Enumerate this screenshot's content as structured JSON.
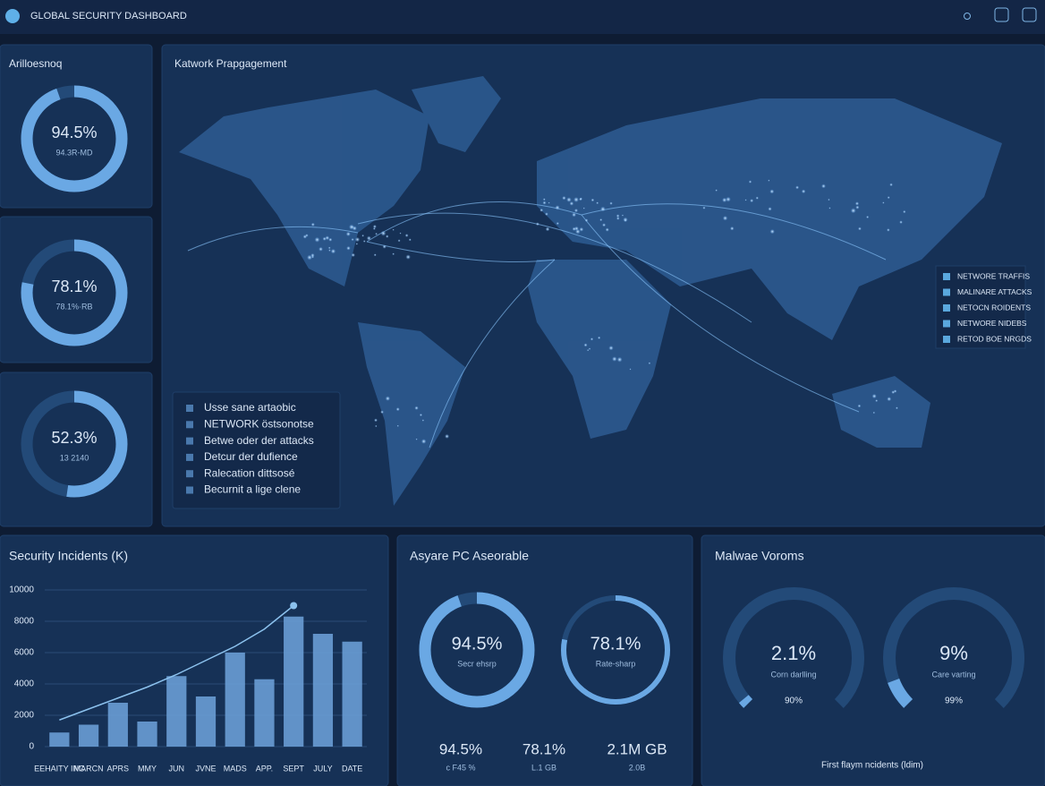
{
  "header": {
    "title": "GLOBAL SECURITY DASHBOARD"
  },
  "side_panel": {
    "title": "Arilloesnoq",
    "gauges": [
      {
        "value": 94.5,
        "label": "94.5%",
        "sub": "94.3R-MD"
      },
      {
        "value": 78.1,
        "label": "78.1%",
        "sub": "78.1%·RB"
      },
      {
        "value": 52.3,
        "label": "52.3%",
        "sub": "13 2140"
      }
    ]
  },
  "map": {
    "title": "Katwork Prapgagement",
    "list": [
      "Usse sane artaobic",
      "NETWORK östsonotse",
      "Betwe oder der attacks",
      "Detcur der dufience",
      "Ralecation dittsosé",
      "Becurnit a lige clene"
    ],
    "legend": [
      "NETWORE TRAFFIS",
      "MALINARE ATTACKS",
      "NETOCN ROIDENTS",
      "NETWORE NIDEBS",
      "RETOD BOE NRGDS"
    ]
  },
  "incidents": {
    "type": "bar",
    "title": "Security Incidents (K)",
    "categories": [
      "EEHAITY INC",
      "MARCN",
      "APRS",
      "MMY",
      "JUN",
      "JVNE",
      "MADS",
      "APP.",
      "SEPT",
      "JULY",
      "DATE"
    ],
    "values": [
      900,
      1400,
      2800,
      1600,
      4500,
      3200,
      6000,
      4300,
      8300,
      7200,
      6700
    ],
    "color": "#6fa3dc",
    "line": {
      "values": [
        1700,
        2400,
        3100,
        3800,
        4600,
        5500,
        6400,
        7500,
        9000,
        null,
        null
      ],
      "color": "#8cc2ee"
    },
    "ylim": [
      0,
      10000
    ],
    "yticks": [
      0,
      2000,
      4000,
      6000,
      8000,
      10000
    ]
  },
  "assets": {
    "title": "Asyare PC Aseorable",
    "gauges": [
      {
        "value": 94.5,
        "label": "94.5%",
        "sub": "Secr ehsrp"
      },
      {
        "value": 78.1,
        "label": "78.1%",
        "sub": "Rate-sharp"
      }
    ],
    "stats": [
      {
        "text": "94.5%",
        "sub": "c F45 %"
      },
      {
        "text": "78.1%",
        "sub": "L.1 GB"
      },
      {
        "text": "2.1M GB",
        "sub": "2.0B"
      }
    ]
  },
  "malware": {
    "title": "Malwae Voroms",
    "gauges": [
      {
        "value": 2.1,
        "label": "2.1%",
        "sub": "Corn darlling",
        "note": "90%"
      },
      {
        "value": 9,
        "label": "9%",
        "sub": "Care varting",
        "note": "99%"
      }
    ],
    "footer": "First flaym ncidents (ldim)"
  }
}
